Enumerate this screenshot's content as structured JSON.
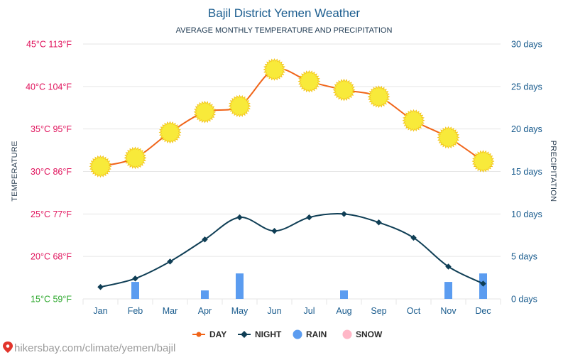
{
  "chart_data": {
    "type": "line",
    "title": "Bajil District Yemen Weather",
    "subtitle": "AVERAGE MONTHLY TEMPERATURE AND PRECIPITATION",
    "categories": [
      "Jan",
      "Feb",
      "Mar",
      "Apr",
      "May",
      "Jun",
      "Jul",
      "Aug",
      "Sep",
      "Oct",
      "Nov",
      "Dec"
    ],
    "temperature_axis": {
      "label": "TEMPERATURE",
      "unit": "°C",
      "ylim": [
        15,
        45
      ],
      "ticks": [
        {
          "value": 15,
          "label": "15°C 59°F",
          "color": "#2fa82f"
        },
        {
          "value": 20,
          "label": "20°C 68°F",
          "color": "#e0135c"
        },
        {
          "value": 25,
          "label": "25°C 77°F",
          "color": "#e0135c"
        },
        {
          "value": 30,
          "label": "30°C 86°F",
          "color": "#e0135c"
        },
        {
          "value": 35,
          "label": "35°C 95°F",
          "color": "#e0135c"
        },
        {
          "value": 40,
          "label": "40°C 104°F",
          "color": "#e0135c"
        },
        {
          "value": 45,
          "label": "45°C 113°F",
          "color": "#e0135c"
        }
      ]
    },
    "precipitation_axis": {
      "label": "PRECIPITATION",
      "unit": "days",
      "ylim": [
        0,
        30
      ],
      "ticks": [
        {
          "value": 0,
          "label": "0 days"
        },
        {
          "value": 5,
          "label": "5 days"
        },
        {
          "value": 10,
          "label": "10 days"
        },
        {
          "value": 15,
          "label": "15 days"
        },
        {
          "value": 20,
          "label": "20 days"
        },
        {
          "value": 25,
          "label": "25 days"
        },
        {
          "value": 30,
          "label": "30 days"
        }
      ]
    },
    "series": [
      {
        "name": "DAY",
        "type": "line",
        "axis": "temperature",
        "color": "#f06418",
        "values": [
          30.6,
          31.6,
          34.6,
          37.0,
          37.7,
          42.0,
          40.6,
          39.6,
          38.8,
          36.0,
          34.0,
          31.2
        ]
      },
      {
        "name": "NIGHT",
        "type": "line",
        "axis": "temperature",
        "color": "#0f3e55",
        "values": [
          16.4,
          17.4,
          19.4,
          22.0,
          24.6,
          23.0,
          24.6,
          25.0,
          24.0,
          22.2,
          18.8,
          16.8
        ]
      },
      {
        "name": "RAIN",
        "type": "bar",
        "axis": "precipitation",
        "color": "#5b9cf0",
        "values": [
          0,
          2,
          0,
          1,
          3,
          0,
          0,
          1,
          0,
          0,
          2,
          3
        ]
      },
      {
        "name": "SNOW",
        "type": "bar",
        "axis": "precipitation",
        "color": "#ffb7c7",
        "values": [
          0,
          0,
          0,
          0,
          0,
          0,
          0,
          0,
          0,
          0,
          0,
          0
        ]
      }
    ],
    "grid": true,
    "legend_position": "bottom-center"
  },
  "footer": {
    "url": "hikersbay.com/climate/yemen/bajil",
    "icon": "location-pin-icon"
  },
  "colors": {
    "grid": "#e6e6e6",
    "sun_fill": "#f8ea3a",
    "sun_stroke": "#f2c21a"
  }
}
